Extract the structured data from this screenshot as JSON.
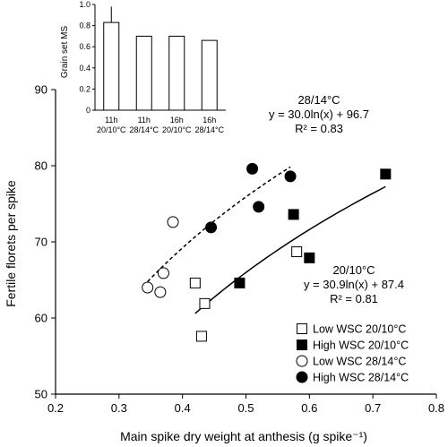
{
  "chart_data": [
    {
      "type": "scatter",
      "xlabel": "Main spike dry weight at anthesis (g spike⁻¹)",
      "ylabel": "Fertile florets per spike",
      "xlim": [
        0.2,
        0.8
      ],
      "ylim": [
        50,
        90
      ],
      "xticks": [
        "0.2",
        "0.3",
        "0.4",
        "0.5",
        "0.6",
        "0.7",
        "0.8"
      ],
      "yticks": [
        "50",
        "60",
        "70",
        "80",
        "90"
      ],
      "grid": false,
      "legend_position": "bottom-right",
      "series": [
        {
          "name": "Low WSC 20/10°C",
          "marker": "open-square",
          "points": [
            [
              0.42,
              64.6
            ],
            [
              0.435,
              61.9
            ],
            [
              0.43,
              57.6
            ],
            [
              0.58,
              68.7
            ]
          ]
        },
        {
          "name": "High WSC 20/10°C",
          "marker": "filled-square",
          "points": [
            [
              0.49,
              64.6
            ],
            [
              0.575,
              73.6
            ],
            [
              0.6,
              67.9
            ],
            [
              0.72,
              78.9
            ]
          ]
        },
        {
          "name": "Low WSC 28/14°C",
          "marker": "open-circle",
          "points": [
            [
              0.345,
              64.0
            ],
            [
              0.365,
              63.4
            ],
            [
              0.37,
              65.9
            ],
            [
              0.385,
              72.6
            ]
          ]
        },
        {
          "name": "High WSC 28/14°C",
          "marker": "filled-circle",
          "points": [
            [
              0.445,
              71.9
            ],
            [
              0.51,
              79.6
            ],
            [
              0.52,
              74.6
            ],
            [
              0.57,
              78.6
            ]
          ]
        }
      ],
      "fits": [
        {
          "style": "dashed",
          "a": 30.0,
          "b": 96.7,
          "xrange": [
            0.345,
            0.57
          ]
        },
        {
          "style": "solid",
          "a": 30.9,
          "b": 87.4,
          "xrange": [
            0.42,
            0.72
          ]
        }
      ],
      "annotations": [
        {
          "lines": [
            "28/14°C",
            "y = 30.0ln(x) + 96.7",
            "R² = 0.83"
          ]
        },
        {
          "lines": [
            "20/10°C",
            "y = 30.9ln(x) + 87.4",
            "R² = 0.81"
          ]
        }
      ]
    },
    {
      "type": "bar",
      "ylabel": "Grain set MS",
      "ylim": [
        0,
        1
      ],
      "yticks": [
        "0",
        "0.2",
        "0.4",
        "0.6",
        "0.8",
        "1.0"
      ],
      "categories": [
        [
          "11h",
          "20/10°C"
        ],
        [
          "11h",
          "28/14°C"
        ],
        [
          "16h",
          "20/10°C"
        ],
        [
          "16h",
          "28/14°C"
        ]
      ],
      "values": [
        0.83,
        0.7,
        0.7,
        0.66
      ],
      "error_bars": [
        0.15,
        0,
        0,
        0
      ]
    }
  ]
}
